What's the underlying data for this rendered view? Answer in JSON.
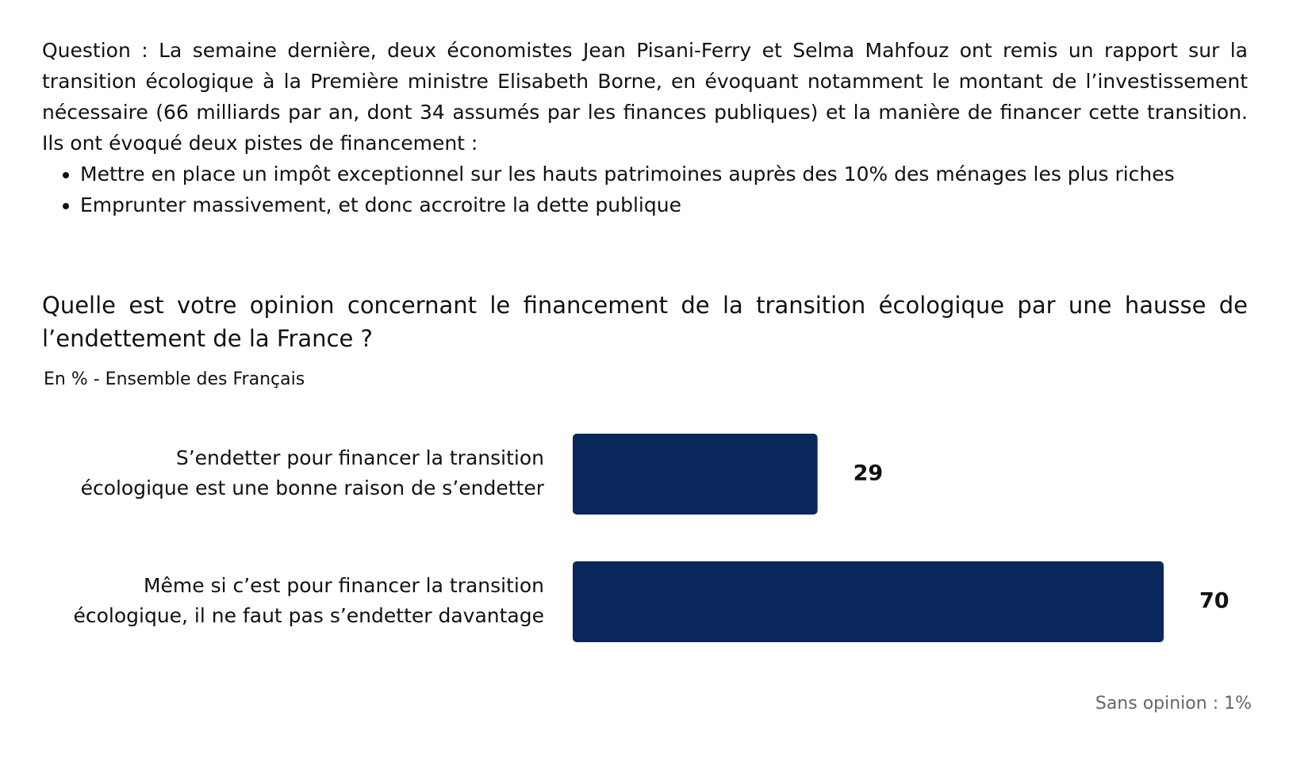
{
  "intro": {
    "text": "Question : La semaine dernière, deux économistes Jean Pisani-Ferry et Selma Mahfouz ont remis un rapport sur la transition écologique à la Première ministre Elisabeth Borne, en évoquant notamment le montant de l’investissement nécessaire (66 milliards par an, dont 34 assumés par les finances publiques) et la manière de financer cette transition. Ils ont évoqué deux pistes de financement :",
    "options": [
      "Mettre en place un impôt exceptionnel sur les hauts patrimoines auprès des 10% des ménages les plus riches",
      "Emprunter massivement, et donc accroitre la dette publique"
    ]
  },
  "question": "Quelle est votre opinion concernant le financement de la transition écologique par une hausse de l’endettement de la France ?",
  "subtitle": "En % - Ensemble des Français",
  "footnote": "Sans opinion : 1%",
  "colors": {
    "bar": "#0a275c",
    "text": "#111111",
    "footnote": "#666666"
  },
  "chart_data": {
    "type": "bar",
    "orientation": "horizontal",
    "categories": [
      [
        "S’endetter pour financer la transition",
        "écologique est une bonne raison de s’endetter"
      ],
      [
        "Même si c’est pour financer la transition",
        "écologique, il ne faut pas s’endetter davantage"
      ]
    ],
    "values": [
      29,
      70
    ],
    "unit": "%",
    "xlim": [
      0,
      70
    ],
    "grid": false,
    "legend": "none"
  }
}
